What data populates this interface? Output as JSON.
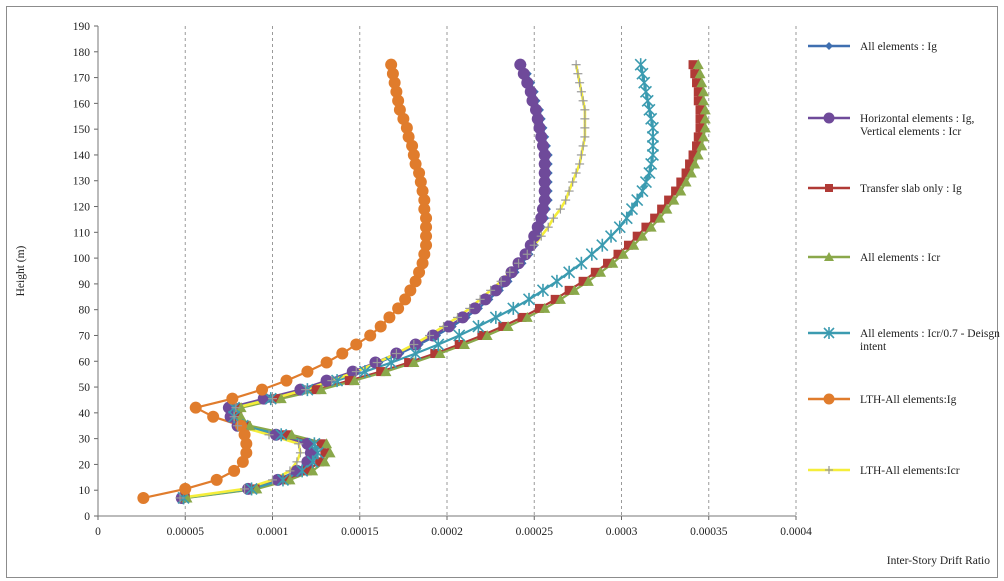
{
  "chart_data": {
    "type": "line",
    "title": "",
    "xlabel": "Inter-Story Drift Ratio",
    "ylabel": "Height (m)",
    "xlim": [
      0,
      0.0004
    ],
    "ylim": [
      0,
      190
    ],
    "x_ticks": [
      "0",
      "0.00005",
      "0.0001",
      "0.00015",
      "0.0002",
      "0.00025",
      "0.0003",
      "0.00035",
      "0.0004"
    ],
    "y_ticks": [
      "0",
      "10",
      "20",
      "30",
      "40",
      "50",
      "60",
      "70",
      "80",
      "90",
      "100",
      "110",
      "120",
      "130",
      "140",
      "150",
      "160",
      "170",
      "180",
      "190"
    ],
    "grid": {
      "vertical_dashed": true,
      "horizontal": false
    },
    "legend_position": "right",
    "heights": [
      7,
      10.5,
      14,
      17.5,
      21,
      24.5,
      28,
      31.5,
      35,
      38.5,
      42,
      45.5,
      49,
      52.5,
      56,
      59.5,
      63,
      66.5,
      70,
      73.5,
      77,
      80.5,
      84,
      87.5,
      91,
      94.5,
      98,
      101.5,
      105,
      108.5,
      112,
      115.5,
      119,
      122.5,
      126,
      129.5,
      133,
      136.5,
      140,
      143.5,
      147,
      150.5,
      154,
      157.5,
      161,
      164.5,
      168,
      171.5,
      175
    ],
    "series": [
      {
        "name": "All elements : Ig",
        "color": "#3f6fb0",
        "marker": "diamond",
        "x": [
          4.9e-05,
          8.8e-05,
          0.000105,
          0.000116,
          0.000122,
          0.000124,
          0.000122,
          0.000104,
          8.2e-05,
          7.8e-05,
          7.8e-05,
          9.8e-05,
          0.000118,
          0.000133,
          0.000148,
          0.000161,
          0.000173,
          0.000184,
          0.000194,
          0.000203,
          0.000211,
          0.000218,
          0.000224,
          0.00023,
          0.000235,
          0.000239,
          0.000243,
          0.000247,
          0.00025,
          0.000252,
          0.000254,
          0.000256,
          0.000257,
          0.000258,
          0.000258,
          0.000258,
          0.000258,
          0.000258,
          0.000258,
          0.000257,
          0.000256,
          0.000255,
          0.000254,
          0.000253,
          0.000251,
          0.00025,
          0.000248,
          0.000246,
          0.000243
        ]
      },
      {
        "name": "Horizontal elements : Ig, Vertical elements : Icr",
        "color": "#6f4a9a",
        "marker": "circle",
        "x": [
          4.8e-05,
          8.6e-05,
          0.000103,
          0.000114,
          0.00012,
          0.000122,
          0.00012,
          0.000102,
          8e-05,
          7.6e-05,
          7.5e-05,
          9.5e-05,
          0.000116,
          0.000131,
          0.000146,
          0.000159,
          0.000171,
          0.000182,
          0.000192,
          0.000201,
          0.000209,
          0.000216,
          0.000222,
          0.000228,
          0.000233,
          0.000237,
          0.000241,
          0.000245,
          0.000248,
          0.00025,
          0.000252,
          0.000254,
          0.000255,
          0.000256,
          0.000256,
          0.000256,
          0.000256,
          0.000256,
          0.000256,
          0.000255,
          0.000254,
          0.000253,
          0.000252,
          0.000251,
          0.000249,
          0.000248,
          0.000246,
          0.000244,
          0.000242
        ]
      },
      {
        "name": "Transfer slab only : Ig",
        "color": "#b03a36",
        "marker": "square",
        "x": [
          5e-05,
          9e-05,
          0.000108,
          0.00012,
          0.000127,
          0.00013,
          0.000128,
          0.000108,
          8.5e-05,
          8e-05,
          8e-05,
          0.000102,
          0.000125,
          0.000144,
          0.000162,
          0.000178,
          0.000193,
          0.000207,
          0.00022,
          0.000232,
          0.000243,
          0.000253,
          0.000262,
          0.00027,
          0.000278,
          0.000285,
          0.000292,
          0.000298,
          0.000304,
          0.000309,
          0.000314,
          0.000319,
          0.000323,
          0.000327,
          0.000331,
          0.000334,
          0.000337,
          0.000339,
          0.000341,
          0.000343,
          0.000344,
          0.000345,
          0.000345,
          0.000345,
          0.000344,
          0.000344,
          0.000343,
          0.000342,
          0.000341
        ]
      },
      {
        "name": "All elements : Icr",
        "color": "#8aa84a",
        "marker": "triangle",
        "x": [
          5.1e-05,
          9.1e-05,
          0.00011,
          0.000123,
          0.00013,
          0.000133,
          0.000131,
          0.000111,
          8.7e-05,
          8.2e-05,
          8.2e-05,
          0.000105,
          0.000128,
          0.000147,
          0.000165,
          0.000181,
          0.000196,
          0.00021,
          0.000223,
          0.000235,
          0.000246,
          0.000256,
          0.000265,
          0.000273,
          0.000281,
          0.000288,
          0.000295,
          0.000301,
          0.000307,
          0.000312,
          0.000317,
          0.000322,
          0.000326,
          0.00033,
          0.000334,
          0.000337,
          0.00034,
          0.000342,
          0.000344,
          0.000346,
          0.000347,
          0.000348,
          0.000348,
          0.000348,
          0.000347,
          0.000347,
          0.000346,
          0.000345,
          0.000344
        ]
      },
      {
        "name": "All elements : Icr/0.7 - Deisgn intent",
        "color": "#3b9bb0",
        "marker": "star",
        "x": [
          4.9e-05,
          8.8e-05,
          0.000106,
          0.000117,
          0.000123,
          0.000126,
          0.000124,
          0.000105,
          8.3e-05,
          7.8e-05,
          7.8e-05,
          9.9e-05,
          0.00012,
          0.000137,
          0.000153,
          0.000168,
          0.000182,
          0.000195,
          0.000207,
          0.000218,
          0.000228,
          0.000238,
          0.000247,
          0.000255,
          0.000263,
          0.00027,
          0.000277,
          0.000283,
          0.000289,
          0.000294,
          0.000299,
          0.000303,
          0.000306,
          0.000309,
          0.000312,
          0.000314,
          0.000316,
          0.000317,
          0.000318,
          0.000318,
          0.000318,
          0.000318,
          0.000317,
          0.000316,
          0.000315,
          0.000314,
          0.000313,
          0.000312,
          0.000311
        ]
      },
      {
        "name": "LTH-All elements:Ig",
        "color": "#e07c2c",
        "marker": "circle",
        "x": [
          2.6e-05,
          5e-05,
          6.8e-05,
          7.8e-05,
          8.3e-05,
          8.5e-05,
          8.5e-05,
          8.4e-05,
          8.2e-05,
          6.6e-05,
          5.6e-05,
          7.7e-05,
          9.4e-05,
          0.000108,
          0.00012,
          0.000131,
          0.00014,
          0.000148,
          0.000156,
          0.000162,
          0.000167,
          0.000172,
          0.000176,
          0.000179,
          0.000182,
          0.000184,
          0.000186,
          0.000187,
          0.000188,
          0.000188,
          0.000188,
          0.000188,
          0.000187,
          0.000187,
          0.000186,
          0.000185,
          0.000184,
          0.000182,
          0.000181,
          0.00018,
          0.000178,
          0.000177,
          0.000175,
          0.000173,
          0.000172,
          0.000171,
          0.00017,
          0.000169,
          0.000168
        ]
      },
      {
        "name": "LTH-All elements:Icr",
        "color": "#f5ee3a",
        "marker": "plus",
        "x": [
          4.7e-05,
          8.4e-05,
          0.0001,
          0.00011,
          0.000114,
          0.000116,
          0.000115,
          9.8e-05,
          8e-05,
          7.8e-05,
          7.9e-05,
          0.0001,
          0.000119,
          0.000134,
          0.000148,
          0.00016,
          0.000171,
          0.000181,
          0.00019,
          0.000198,
          0.000206,
          0.000213,
          0.000219,
          0.000225,
          0.000231,
          0.000236,
          0.000241,
          0.000246,
          0.00025,
          0.000254,
          0.000258,
          0.000261,
          0.000265,
          0.000268,
          0.00027,
          0.000272,
          0.000274,
          0.000276,
          0.000277,
          0.000278,
          0.000279,
          0.000279,
          0.000279,
          0.000279,
          0.000278,
          0.000277,
          0.000276,
          0.000275,
          0.000274
        ]
      }
    ]
  }
}
